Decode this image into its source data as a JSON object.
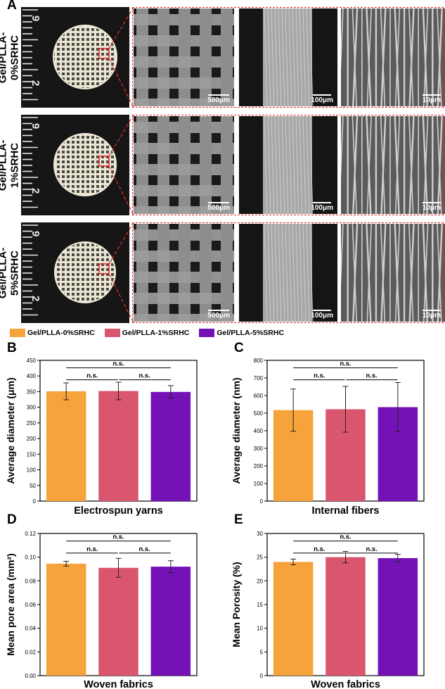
{
  "panel_letters": {
    "a": "A",
    "b": "B",
    "c": "C",
    "d": "D",
    "e": "E"
  },
  "row_labels": [
    "Gel/PLLA-\n0%SRHC",
    "Gel/PLLA-\n1%SRHC",
    "Gel/PLLA-\n5%SRHC"
  ],
  "row_label_lines": [
    [
      "Gel/PLLA-",
      "0%SRHC"
    ],
    [
      "Gel/PLLA-",
      "1%SRHC"
    ],
    [
      "Gel/PLLA-",
      "5%SRHC"
    ]
  ],
  "ruler_numbers": [
    "9",
    "2"
  ],
  "scale_bars": [
    "500μm",
    "100μm",
    "10μm"
  ],
  "colors": {
    "g0": "#f7a33b",
    "g1": "#d9566e",
    "g5": "#7512b7",
    "dash": "#e0262a"
  },
  "legend": [
    "Gel/PLLA-0%SRHC",
    "Gel/PLLA-1%SRHC",
    "Gel/PLLA-5%SRHC"
  ],
  "chart_data": [
    {
      "id": "B",
      "type": "bar",
      "categories": [
        "Gel/PLLA-0%SRHC",
        "Gel/PLLA-1%SRHC",
        "Gel/PLLA-5%SRHC"
      ],
      "values": [
        351,
        352,
        349
      ],
      "errors": [
        27,
        28,
        20
      ],
      "ylabel": "Average diameter (μm)",
      "xlabel": "Electrospun yarns",
      "ylim": [
        0,
        450
      ],
      "yticks": [
        "0",
        "50",
        "100",
        "150",
        "200",
        "250",
        "300",
        "350",
        "400",
        "450"
      ],
      "sig": [
        "n.s.",
        "n.s.",
        "n.s."
      ]
    },
    {
      "id": "C",
      "type": "bar",
      "categories": [
        "Gel/PLLA-0%SRHC",
        "Gel/PLLA-1%SRHC",
        "Gel/PLLA-5%SRHC"
      ],
      "values": [
        517,
        522,
        534
      ],
      "errors": [
        120,
        130,
        140
      ],
      "ylabel": "Average diameter (nm)",
      "xlabel": "Internal fibers",
      "ylim": [
        0,
        800
      ],
      "yticks": [
        "0",
        "100",
        "200",
        "300",
        "400",
        "500",
        "600",
        "700",
        "800"
      ],
      "sig": [
        "n.s.",
        "n.s.",
        "n.s."
      ]
    },
    {
      "id": "D",
      "type": "bar",
      "categories": [
        "Gel/PLLA-0%SRHC",
        "Gel/PLLA-1%SRHC",
        "Gel/PLLA-5%SRHC"
      ],
      "values": [
        0.0945,
        0.091,
        0.092
      ],
      "errors": [
        0.002,
        0.008,
        0.005
      ],
      "ylabel": "Mean pore area (mm²)",
      "xlabel": "Woven fabrics",
      "ylim": [
        0,
        0.12
      ],
      "yticks": [
        "0.00",
        "0.02",
        "0.04",
        "0.06",
        "0.08",
        "0.10",
        "0.12"
      ],
      "sig": [
        "n.s.",
        "n.s.",
        "n.s."
      ]
    },
    {
      "id": "E",
      "type": "bar",
      "categories": [
        "Gel/PLLA-0%SRHC",
        "Gel/PLLA-1%SRHC",
        "Gel/PLLA-5%SRHC"
      ],
      "values": [
        24.0,
        25.0,
        24.8
      ],
      "errors": [
        0.6,
        1.2,
        0.8
      ],
      "ylabel": "Mean Porosity (%)",
      "xlabel": "Woven fabrics",
      "ylim": [
        0,
        30
      ],
      "yticks": [
        "0",
        "5",
        "10",
        "15",
        "20",
        "25",
        "30"
      ],
      "sig": [
        "n.s.",
        "n.s.",
        "n.s."
      ]
    }
  ]
}
